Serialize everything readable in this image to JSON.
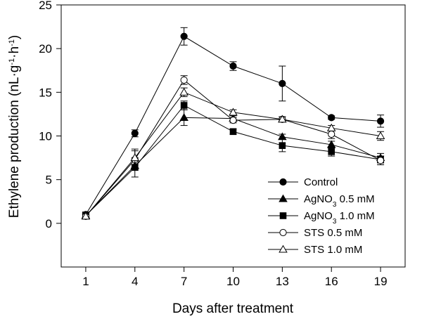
{
  "chart_data": {
    "type": "line",
    "xlabel": "Days after treatment",
    "ylabel": {
      "base": "Ethylene production (nL",
      "unit_g": "g",
      "unit_h": "h",
      "exp": "-1",
      "dot": "·",
      "close": ")"
    },
    "x": [
      1,
      4,
      7,
      10,
      13,
      16,
      19
    ],
    "x_ticks": [
      "1",
      "4",
      "7",
      "10",
      "13",
      "16",
      "19"
    ],
    "xlim": [
      -0.5,
      20.5
    ],
    "ylim": [
      -5,
      25
    ],
    "y_ticks": [
      0,
      5,
      10,
      15,
      20,
      25
    ],
    "y_tick_labels": [
      "0",
      "5",
      "10",
      "15",
      "20",
      "25"
    ],
    "grid": false,
    "legend_position": "bottom-right",
    "series": [
      {
        "name": "Control",
        "marker": "circle",
        "fill": "#000000",
        "values": [
          1.0,
          10.3,
          21.4,
          18.0,
          16.0,
          12.1,
          11.7
        ],
        "errors": [
          0.3,
          0.4,
          1.0,
          0.5,
          2.0,
          0.2,
          0.7
        ]
      },
      {
        "name_parts": [
          "AgNO",
          "3",
          " 0.5 mM"
        ],
        "marker": "triangle",
        "fill": "#000000",
        "values": [
          0.9,
          6.6,
          12.1,
          12.0,
          9.9,
          9.0,
          7.5
        ],
        "errors": [
          0.3,
          0.5,
          0.9,
          0.3,
          0.3,
          0.4,
          0.5
        ]
      },
      {
        "name_parts": [
          "AgNO",
          "3",
          " 1.0 mM"
        ],
        "marker": "square",
        "fill": "#000000",
        "values": [
          0.9,
          6.4,
          13.5,
          10.5,
          8.9,
          8.2,
          7.3
        ],
        "errors": [
          0.3,
          1.1,
          0.5,
          0.3,
          0.7,
          0.5,
          0.4
        ]
      },
      {
        "name": "STS 0.5 mM",
        "marker": "circle",
        "fill": "#ffffff",
        "values": [
          0.8,
          7.3,
          16.4,
          11.8,
          11.9,
          10.2,
          7.2
        ],
        "errors": [
          0.3,
          1.2,
          0.5,
          0.3,
          0.3,
          0.5,
          0.5
        ]
      },
      {
        "name": "STS 1.0 mM",
        "marker": "triangle",
        "fill": "#ffffff",
        "values": [
          0.8,
          7.5,
          15.0,
          12.7,
          11.9,
          10.9,
          10.0
        ],
        "errors": [
          0.3,
          0.8,
          0.5,
          0.3,
          0.3,
          0.3,
          0.5
        ]
      }
    ]
  }
}
